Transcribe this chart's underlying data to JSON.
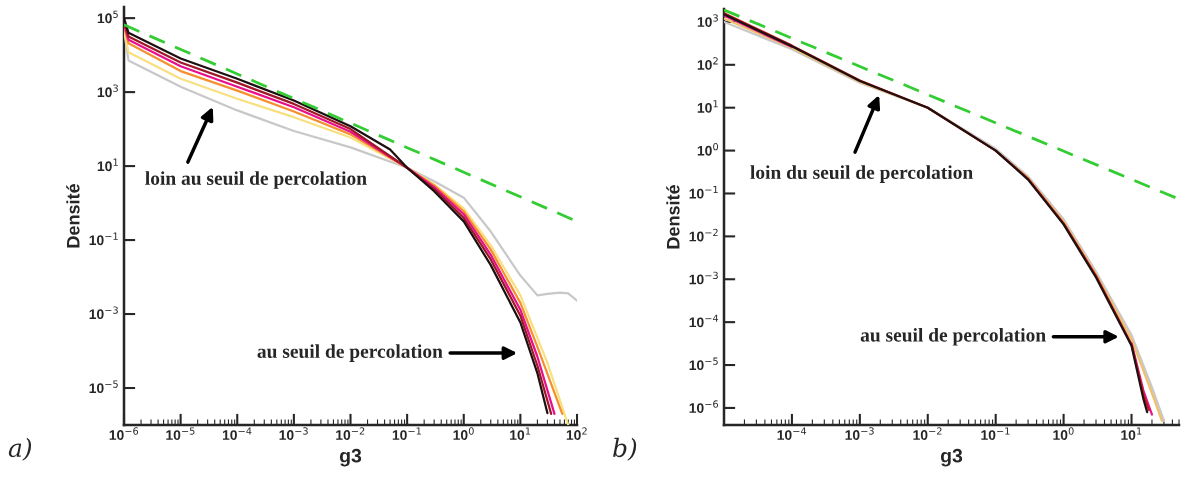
{
  "chart_data": [
    {
      "type": "line",
      "xlabel": "g3",
      "ylabel": "Densité",
      "log": "xy",
      "grid": false,
      "legend": false,
      "xlim": [
        1e-06,
        100
      ],
      "ylim": [
        1e-06,
        200000.0
      ],
      "xticks": [
        {
          "value": 1e-06,
          "label": "10$^{−6}$"
        },
        {
          "value": 1e-05,
          "label": "10$^{−5}$"
        },
        {
          "value": 0.0001,
          "label": "10$^{−4}$"
        },
        {
          "value": 0.001,
          "label": "10$^{−3}$"
        },
        {
          "value": 0.01,
          "label": "10$^{−2}$"
        },
        {
          "value": 0.1,
          "label": "10$^{−1}$"
        },
        {
          "value": 1,
          "label": "10$^{0}$"
        },
        {
          "value": 10,
          "label": "10$^{1}$"
        },
        {
          "value": 100,
          "label": "10$^{2}$"
        }
      ],
      "yticks": [
        {
          "value": 100000.0,
          "label": "10$^{5}$"
        },
        {
          "value": 1000.0,
          "label": "10$^{3}$"
        },
        {
          "value": 10,
          "label": "10$^{1}$"
        },
        {
          "value": 0.1,
          "label": "10$^{−1}$"
        },
        {
          "value": 0.001,
          "label": "10$^{−3}$"
        },
        {
          "value": 1e-05,
          "label": "10$^{−5}$"
        }
      ],
      "series": [
        {
          "color": "#c8c8c8",
          "x": [
            1e-06,
            1.2e-06,
            1e-05,
            0.0001,
            0.001,
            0.01,
            0.1,
            0.3,
            1,
            3,
            10,
            20,
            30,
            50,
            70,
            100
          ],
          "values": [
            48000,
            7200,
            1400,
            320,
            89,
            32,
            9,
            3.9,
            1.4,
            0.17,
            0.011,
            0.0032,
            0.0035,
            0.0038,
            0.0036,
            0.0023
          ]
        },
        {
          "color": "#f8e080",
          "x": [
            1e-06,
            1.2e-06,
            1e-05,
            0.0001,
            0.001,
            0.01,
            0.1,
            0.3,
            1,
            3,
            10,
            30,
            70
          ],
          "values": [
            50000,
            12000,
            2300,
            660,
            210,
            59,
            9,
            3.2,
            0.72,
            0.072,
            0.0032,
            4.8e-05,
            1e-06
          ]
        },
        {
          "color": "#f49030",
          "x": [
            1e-06,
            1.2e-06,
            1e-05,
            0.0001,
            0.001,
            0.01,
            0.1,
            0.3,
            1,
            3,
            10,
            20,
            55
          ],
          "values": [
            60000,
            21000,
            3700,
            1100,
            300,
            72,
            9,
            3,
            0.6,
            0.055,
            0.002,
            0.00013,
            2e-06
          ]
        },
        {
          "color": "#e8108a",
          "x": [
            1e-06,
            1.2e-06,
            1e-05,
            0.0001,
            0.001,
            0.01,
            0.1,
            0.3,
            1,
            3,
            10,
            20,
            40
          ],
          "values": [
            70000,
            26000,
            5000,
            1400,
            390,
            85,
            9,
            2.7,
            0.5,
            0.04,
            0.0013,
            7e-05,
            2e-06
          ]
        },
        {
          "color": "#a01828",
          "x": [
            1e-06,
            1.2e-06,
            1e-05,
            0.0001,
            0.001,
            0.01,
            0.1,
            0.3,
            1,
            3,
            10,
            20,
            35
          ],
          "values": [
            80000,
            32000,
            6300,
            1800,
            480,
            100,
            9,
            2.4,
            0.4,
            0.03,
            0.0009,
            4e-05,
            2e-06
          ]
        },
        {
          "color": "#1c1010",
          "x": [
            1e-06,
            1.2e-06,
            1e-05,
            0.0001,
            0.001,
            0.01,
            0.05,
            0.1,
            0.3,
            1,
            3,
            10,
            20,
            30
          ],
          "values": [
            100000,
            40000,
            8100,
            2300,
            590,
            120,
            28,
            9,
            2.1,
            0.32,
            0.021,
            0.00059,
            2.5e-05,
            2.1e-06
          ]
        },
        {
          "color": "#33cc33",
          "line_style": "dashed",
          "x": [
            1e-06,
            100
          ],
          "values": [
            66000,
            0.32
          ]
        }
      ],
      "annotations": [
        "loin au seuil de percolation",
        "au seuil de percolation",
        "a)"
      ]
    },
    {
      "type": "line",
      "xlabel": "g3",
      "ylabel": "Densité",
      "log": "xy",
      "grid": false,
      "legend": false,
      "xlim": [
        1e-05,
        50
      ],
      "ylim": [
        4e-07,
        2000
      ],
      "xticks": [
        {
          "value": 0.0001,
          "label": "10$^{−4}$"
        },
        {
          "value": 0.001,
          "label": "10$^{−3}$"
        },
        {
          "value": 0.01,
          "label": "10$^{−2}$"
        },
        {
          "value": 0.1,
          "label": "10$^{−1}$"
        },
        {
          "value": 1,
          "label": "10$^{0}$"
        },
        {
          "value": 10,
          "label": "10$^{1}$"
        }
      ],
      "yticks": [
        {
          "value": 1000,
          "label": "10$^{3}$"
        },
        {
          "value": 100,
          "label": "10$^{2}$"
        },
        {
          "value": 10,
          "label": "10$^{1}$"
        },
        {
          "value": 1,
          "label": "10$^{0}$"
        },
        {
          "value": 0.1,
          "label": "10$^{−1}$"
        },
        {
          "value": 0.01,
          "label": "10$^{−2}$"
        },
        {
          "value": 0.001,
          "label": "10$^{−3}$"
        },
        {
          "value": 0.0001,
          "label": "10$^{−4}$"
        },
        {
          "value": 1e-05,
          "label": "10$^{−5}$"
        },
        {
          "value": 1e-06,
          "label": "10$^{−6}$"
        }
      ],
      "series": [
        {
          "color": "#c8c8c8",
          "x": [
            1e-05,
            0.0001,
            0.001,
            0.01,
            0.1,
            0.3,
            1,
            3,
            10,
            20,
            30
          ],
          "values": [
            1000,
            230,
            38,
            10,
            1.1,
            0.25,
            0.025,
            0.0015,
            5e-05,
            3e-06,
            5e-07
          ]
        },
        {
          "color": "#f0c070",
          "x": [
            1e-05,
            0.0001,
            0.001,
            0.01,
            0.1,
            0.3,
            1,
            3,
            10,
            20,
            28
          ],
          "values": [
            1200,
            250,
            40,
            10,
            1,
            0.23,
            0.022,
            0.0013,
            4e-05,
            2.2e-06,
            5e-07
          ]
        },
        {
          "color": "#e01890",
          "x": [
            1e-05,
            0.0001,
            0.001,
            0.01,
            0.1,
            0.3,
            1,
            3,
            10,
            15,
            20
          ],
          "values": [
            1400,
            260,
            null,
            null,
            null,
            null,
            null,
            null,
            3.2e-05,
            2.5e-06,
            7e-07
          ]
        },
        {
          "color": "#c01818",
          "x": [
            1e-05,
            0.0001,
            0.001,
            0.01,
            0.1,
            0.3,
            1,
            3,
            10,
            15,
            18
          ],
          "values": [
            1600,
            280,
            43,
            10,
            1,
            0.22,
            0.02,
            0.0012,
            3e-05,
            2e-06,
            9e-07
          ]
        },
        {
          "color": "#201010",
          "x": [
            1e-05,
            0.0001,
            0.001,
            0.01,
            0.1,
            0.3,
            1,
            3,
            10,
            15,
            17
          ],
          "values": [
            1500,
            270,
            42,
            10,
            1,
            0.21,
            0.019,
            0.0011,
            2.8e-05,
            1.6e-06,
            8e-07
          ]
        },
        {
          "color": "#33cc33",
          "line_style": "dashed",
          "x": [
            1e-05,
            50
          ],
          "values": [
            1900,
            0.074
          ]
        }
      ],
      "annotations": [
        "loin du seuil de percolation",
        "au seuil de percolation",
        "b)"
      ]
    }
  ]
}
